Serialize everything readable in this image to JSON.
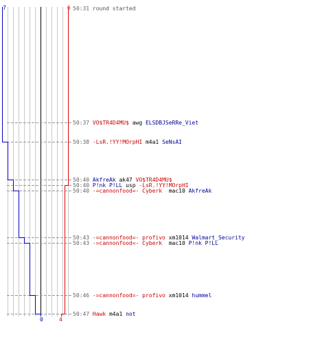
{
  "scores": {
    "blue_start": "7",
    "red_start": "6",
    "blue_end": "0",
    "red_end": "4"
  },
  "colors": {
    "blue": "#0000bb",
    "red": "#dd0000",
    "grid": "#c8c8c8",
    "dark_line": "#000000"
  },
  "chart_data": {
    "type": "line",
    "series": [
      {
        "team": "blue",
        "values": [
          7,
          7,
          6,
          5,
          5,
          4,
          3,
          2,
          1,
          0
        ]
      },
      {
        "team": "red",
        "values": [
          6,
          6,
          6,
          6,
          5,
          5,
          5,
          5,
          5,
          4
        ]
      }
    ]
  },
  "events": [
    {
      "time": "50:31",
      "segments": [
        {
          "text": "round started",
          "style": "plain"
        }
      ]
    },
    {
      "time": "50:37",
      "segments": [
        {
          "text": "VO$TR4D4MU$",
          "style": "red"
        },
        {
          "text": " awg ",
          "style": "black"
        },
        {
          "text": "ELSDBJSeRRe_Viet",
          "style": "blue"
        }
      ]
    },
    {
      "time": "50:38",
      "segments": [
        {
          "text": "-LsR.!YY!MOrpHI",
          "style": "red"
        },
        {
          "text": " m4a1 ",
          "style": "black"
        },
        {
          "text": "SeNsAI",
          "style": "blue"
        }
      ]
    },
    {
      "time": "50:40",
      "segments": [
        {
          "text": "AkfreAk",
          "style": "blue"
        },
        {
          "text": " ak47 ",
          "style": "black"
        },
        {
          "text": "VO$TR4D4MU$",
          "style": "red"
        }
      ]
    },
    {
      "time": "50:40",
      "segments": [
        {
          "text": "P!nk P!LL",
          "style": "blue"
        },
        {
          "text": " usp ",
          "style": "black"
        },
        {
          "text": "-LsR.!YY!MOrpHI",
          "style": "red"
        }
      ]
    },
    {
      "time": "50:40",
      "segments": [
        {
          "text": "-=cannonfood=- Cyberk",
          "style": "red"
        },
        {
          "text": "  mac10 ",
          "style": "black"
        },
        {
          "text": "AkfreAk",
          "style": "blue"
        }
      ]
    },
    {
      "time": "50:43",
      "segments": [
        {
          "text": "-=cannonfood=- profivo",
          "style": "red"
        },
        {
          "text": " xm1014 ",
          "style": "black"
        },
        {
          "text": "Walmart_Security",
          "style": "blue"
        }
      ]
    },
    {
      "time": "50:43",
      "segments": [
        {
          "text": "-=cannonfood=- Cyberk",
          "style": "red"
        },
        {
          "text": "  mac10 ",
          "style": "black"
        },
        {
          "text": "P!nk P!LL",
          "style": "blue"
        }
      ]
    },
    {
      "time": "50:46",
      "segments": [
        {
          "text": "-=cannonfood=- profivo",
          "style": "red"
        },
        {
          "text": " xm1014 ",
          "style": "black"
        },
        {
          "text": "hummel",
          "style": "blue"
        }
      ]
    },
    {
      "time": "50:47",
      "segments": [
        {
          "text": "Hawk",
          "style": "red"
        },
        {
          "text": " m4a1 ",
          "style": "black"
        },
        {
          "text": "not",
          "style": "blue"
        }
      ]
    }
  ]
}
